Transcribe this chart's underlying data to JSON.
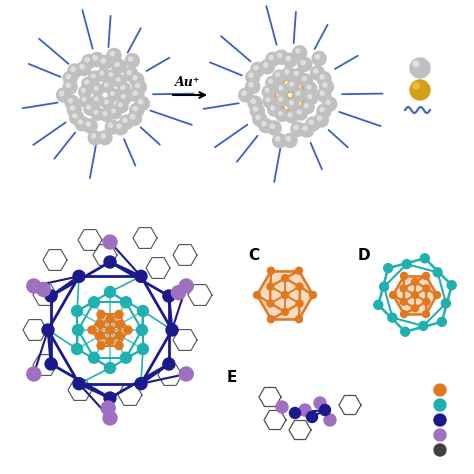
{
  "background": "#ffffff",
  "arrow_text": "Au⁺",
  "label_C": "C",
  "label_D": "D",
  "label_E": "E",
  "silver_color": "#c0c0c0",
  "silver_shine": "#e8e8e8",
  "gold_color": "#d4a017",
  "gold_shine": "#f0c040",
  "blue_chain_color": "#3a5fc5",
  "orange_color": "#e07820",
  "orange_face": "#f0a060",
  "teal_color": "#20b0b0",
  "dark_blue_color": "#1a1a8c",
  "purple_color": "#a070c0",
  "dark_gray": "#404040",
  "legend_orange": "#e07820",
  "legend_teal": "#20b0b0",
  "legend_dark_blue": "#1a1a8c",
  "legend_purple": "#a070c0",
  "legend_dark_gray": "#404040"
}
